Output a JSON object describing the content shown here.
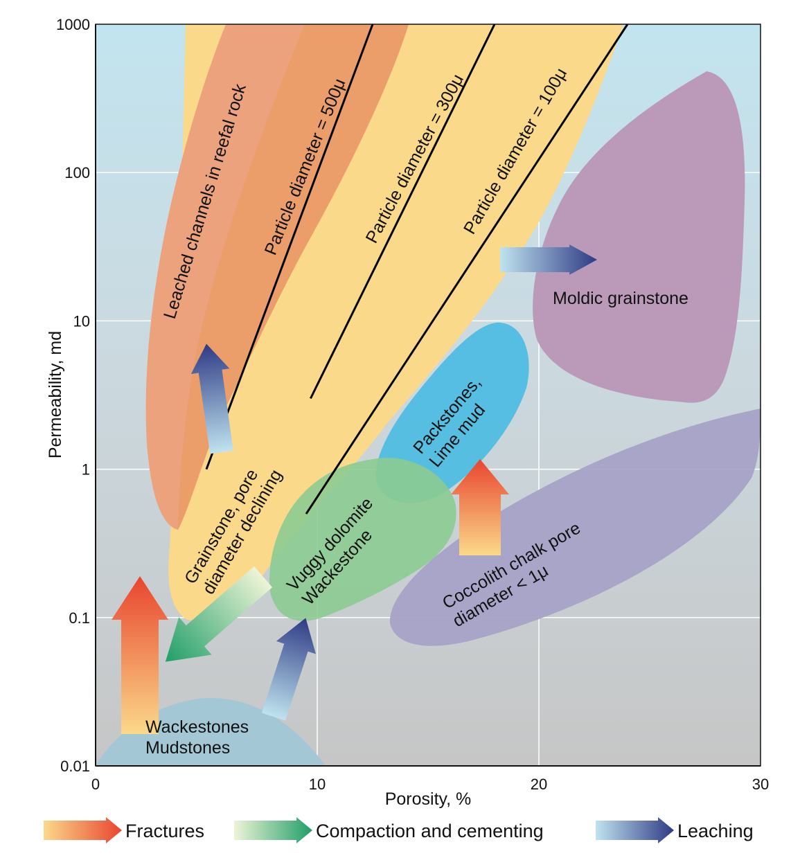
{
  "chart_data": {
    "type": "area",
    "xlabel": "Porosity, %",
    "ylabel": "Permeability, md",
    "xlim": [
      0,
      30
    ],
    "ylim": [
      0.01,
      1000
    ],
    "y_scale": "log",
    "grid": true,
    "x_ticks": [
      "0",
      "10",
      "20",
      "30"
    ],
    "y_ticks": [
      "0.01",
      "0.1",
      "1",
      "10",
      "100",
      "1000"
    ],
    "lines": [
      {
        "label": "Particle diameter = 500μ",
        "points": [
          [
            5.0,
            1.0
          ],
          [
            12.5,
            1000
          ]
        ]
      },
      {
        "label": "Particle diameter = 300μ",
        "points": [
          [
            9.7,
            3.0
          ],
          [
            18.0,
            1000
          ]
        ]
      },
      {
        "label": "Particle diameter = 100μ",
        "points": [
          [
            9.5,
            0.5
          ],
          [
            24.0,
            1000
          ]
        ]
      }
    ],
    "regions": [
      {
        "label": "Leached channels in reefal rock",
        "color": "#eca27c"
      },
      {
        "label": "Grainstone, pore diameter declining",
        "color": "#fbd98a"
      },
      {
        "label": "Moldic grainstone",
        "color": "#bb99b9"
      },
      {
        "label": "Packstones, Lime mud",
        "color": "#4fbde1"
      },
      {
        "label": "Vuggy dolomite Wackestone",
        "color": "#8ccb91"
      },
      {
        "label": "Coccolith chalk pore diameter < 1μ",
        "color": "#a6a2c7"
      },
      {
        "label": "Wackestones Mudstones",
        "color": "#a3c7d5"
      }
    ],
    "legend": [
      {
        "label": "Fractures",
        "color": "#e8452f"
      },
      {
        "label": "Compaction and cementing",
        "color": "#1f9e68"
      },
      {
        "label": "Leaching",
        "color": "#2e3a85"
      }
    ],
    "legend_position": "bottom"
  }
}
